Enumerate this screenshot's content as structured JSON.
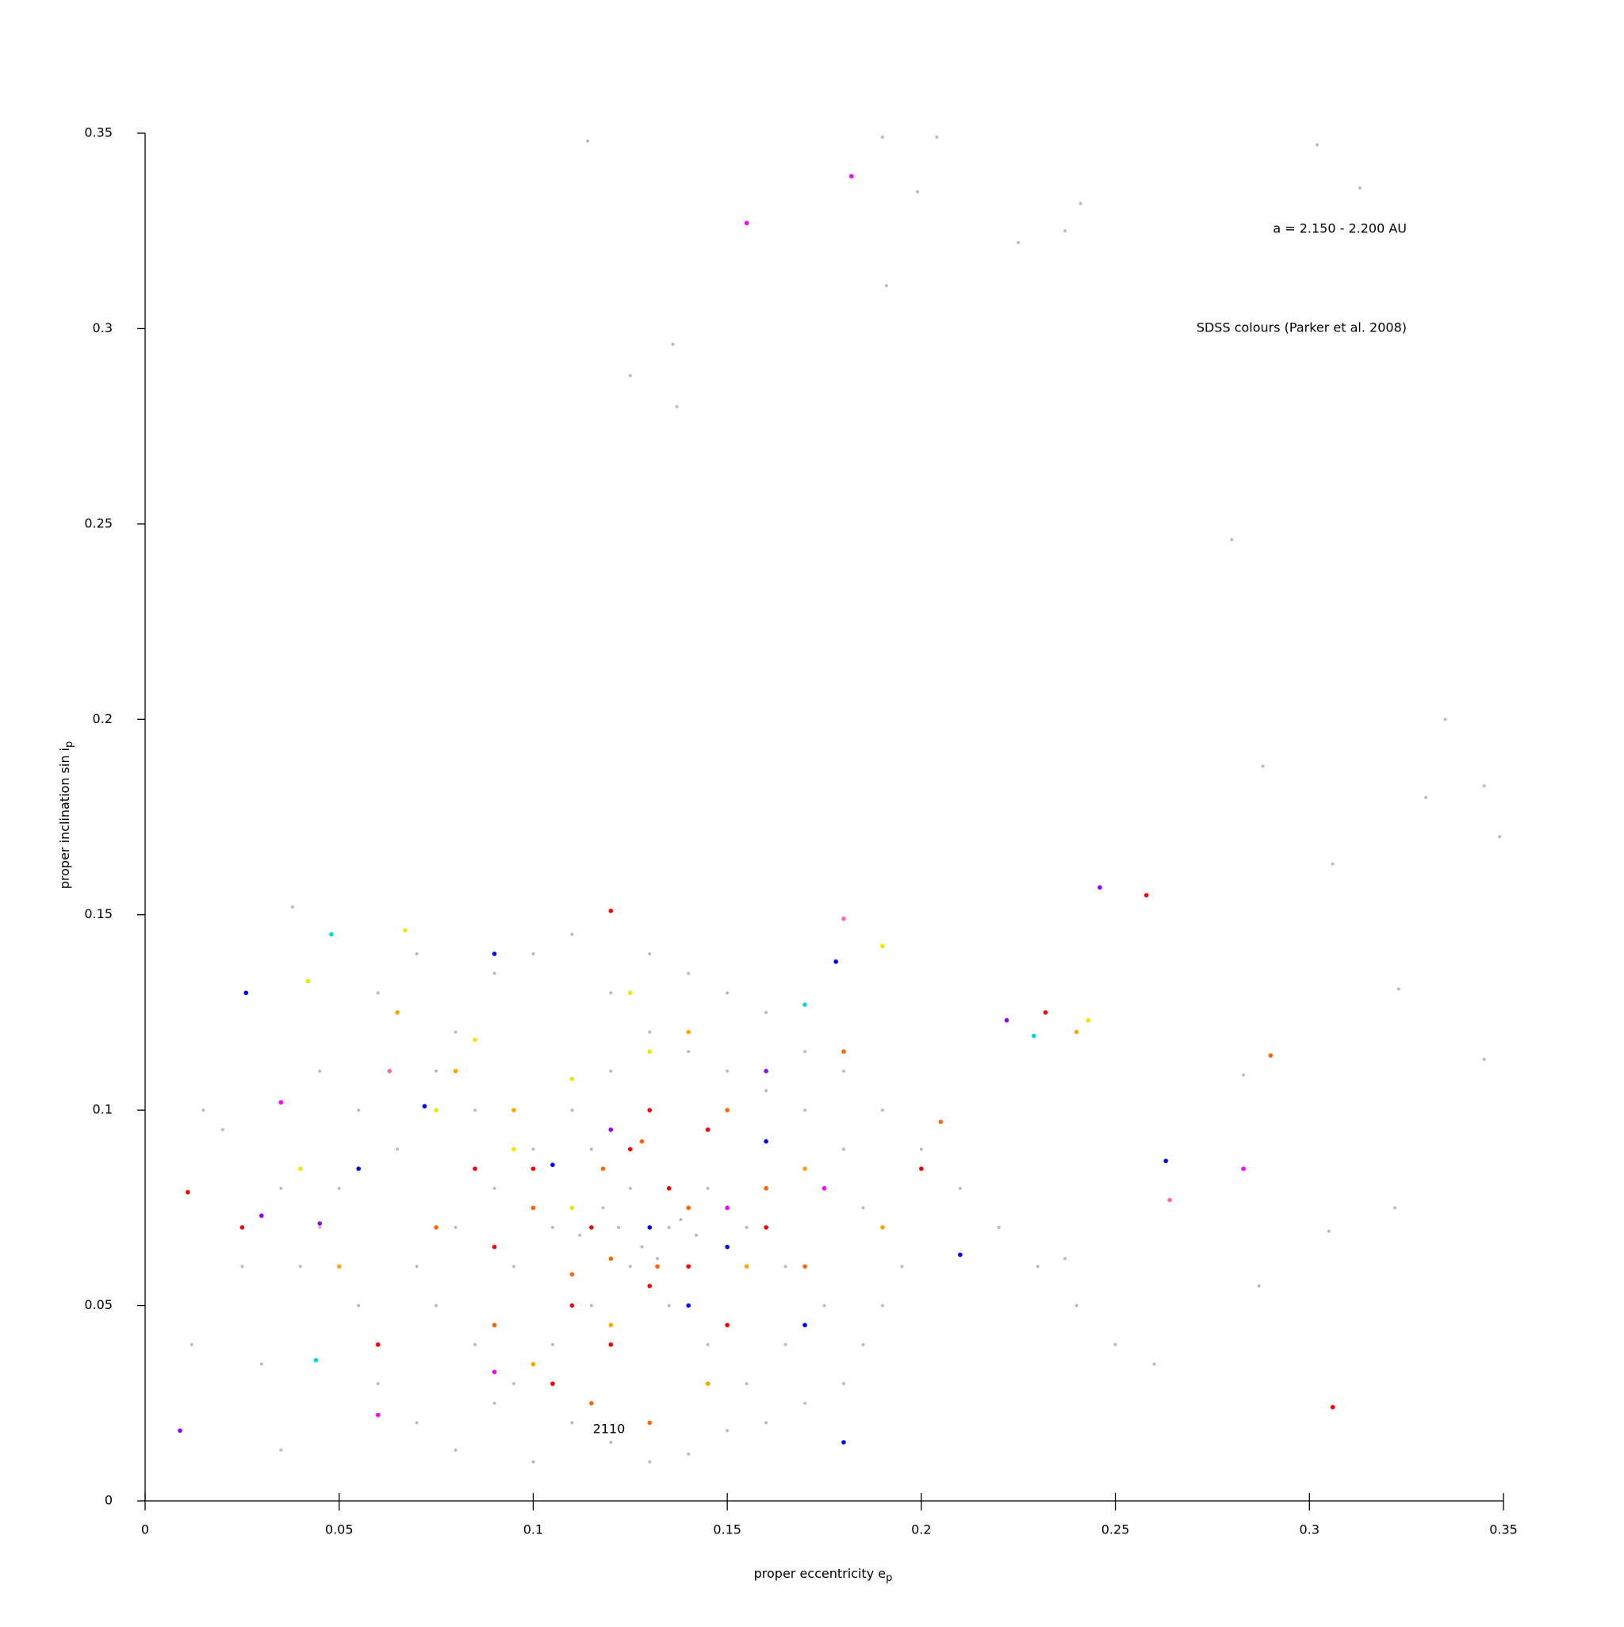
{
  "chart_data": {
    "type": "scatter",
    "xlabel": "proper eccentricity e",
    "xlabel_sub": "p",
    "ylabel": "proper inclination sin i",
    "ylabel_sub": "p",
    "annotations": [
      "a = 2.150 - 2.200 AU",
      "SDSS colours (Parker et al. 2008)",
      "2110"
    ],
    "xlim": [
      0,
      0.35
    ],
    "ylim": [
      0,
      0.35
    ],
    "xticks": [
      0,
      0.05,
      0.1,
      0.15,
      0.2,
      0.25,
      0.3,
      0.35
    ],
    "yticks": [
      0,
      0.05,
      0.1,
      0.15,
      0.2,
      0.25,
      0.3,
      0.35
    ],
    "series": [
      {
        "color": "#bbbbbb",
        "x": [
          0.114,
          0.19,
          0.204,
          0.302,
          0.191,
          0.136,
          0.125,
          0.137,
          0.199,
          0.241,
          0.225,
          0.237,
          0.28,
          0.335,
          0.288,
          0.345,
          0.33,
          0.349,
          0.306,
          0.313,
          0.02,
          0.038,
          0.045,
          0.06,
          0.07,
          0.08,
          0.09,
          0.1,
          0.11,
          0.12,
          0.13,
          0.14,
          0.15,
          0.16,
          0.17,
          0.18,
          0.19,
          0.2,
          0.21,
          0.22,
          0.23,
          0.24,
          0.25,
          0.26,
          0.283,
          0.287,
          0.305,
          0.322,
          0.345,
          0.323,
          0.237,
          0.03,
          0.035,
          0.04,
          0.05,
          0.055,
          0.06,
          0.07,
          0.08,
          0.09,
          0.1,
          0.11,
          0.12,
          0.13,
          0.14,
          0.15,
          0.16,
          0.17,
          0.18,
          0.185,
          0.19,
          0.195,
          0.185,
          0.18,
          0.17,
          0.16,
          0.15,
          0.14,
          0.13,
          0.12,
          0.11,
          0.1,
          0.09,
          0.08,
          0.07,
          0.075,
          0.085,
          0.095,
          0.105,
          0.115,
          0.125,
          0.135,
          0.145,
          0.155,
          0.165,
          0.175,
          0.165,
          0.155,
          0.145,
          0.135,
          0.125,
          0.115,
          0.105,
          0.095,
          0.085,
          0.075,
          0.065,
          0.055,
          0.045,
          0.035,
          0.025,
          0.015,
          0.012,
          0.118,
          0.128,
          0.138,
          0.122,
          0.132,
          0.142,
          0.112
        ],
        "values": [
          0.348,
          0.349,
          0.349,
          0.347,
          0.311,
          0.296,
          0.288,
          0.28,
          0.335,
          0.332,
          0.322,
          0.325,
          0.246,
          0.2,
          0.188,
          0.183,
          0.18,
          0.17,
          0.163,
          0.336,
          0.095,
          0.152,
          0.11,
          0.13,
          0.14,
          0.12,
          0.135,
          0.14,
          0.145,
          0.13,
          0.14,
          0.135,
          0.13,
          0.125,
          0.115,
          0.11,
          0.1,
          0.09,
          0.08,
          0.07,
          0.06,
          0.05,
          0.04,
          0.035,
          0.109,
          0.055,
          0.069,
          0.075,
          0.113,
          0.131,
          0.062,
          0.035,
          0.013,
          0.06,
          0.08,
          0.05,
          0.03,
          0.02,
          0.013,
          0.025,
          0.01,
          0.02,
          0.015,
          0.01,
          0.012,
          0.018,
          0.02,
          0.025,
          0.03,
          0.04,
          0.05,
          0.06,
          0.075,
          0.09,
          0.1,
          0.105,
          0.11,
          0.115,
          0.12,
          0.11,
          0.1,
          0.09,
          0.08,
          0.07,
          0.06,
          0.05,
          0.04,
          0.03,
          0.04,
          0.05,
          0.06,
          0.07,
          0.08,
          0.07,
          0.06,
          0.05,
          0.04,
          0.03,
          0.04,
          0.05,
          0.08,
          0.09,
          0.07,
          0.06,
          0.1,
          0.11,
          0.09,
          0.1,
          0.07,
          0.08,
          0.06,
          0.1,
          0.04,
          0.075,
          0.065,
          0.072,
          0.07,
          0.062,
          0.068,
          0.068
        ]
      },
      {
        "color": "#ff0000",
        "x": [
          0.12,
          0.258,
          0.306,
          0.011,
          0.13,
          0.125,
          0.115,
          0.135,
          0.14,
          0.11,
          0.1,
          0.145,
          0.09,
          0.16,
          0.12,
          0.105,
          0.13,
          0.15,
          0.085,
          0.232,
          0.06,
          0.025,
          0.2
        ],
        "values": [
          0.151,
          0.155,
          0.024,
          0.079,
          0.1,
          0.09,
          0.07,
          0.08,
          0.06,
          0.05,
          0.085,
          0.095,
          0.065,
          0.07,
          0.04,
          0.03,
          0.055,
          0.045,
          0.085,
          0.125,
          0.04,
          0.07,
          0.085
        ]
      },
      {
        "color": "#ff6600",
        "x": [
          0.29,
          0.128,
          0.118,
          0.132,
          0.12,
          0.15,
          0.1,
          0.115,
          0.18,
          0.205,
          0.14,
          0.11,
          0.09,
          0.16,
          0.13,
          0.075,
          0.17
        ],
        "values": [
          0.114,
          0.092,
          0.085,
          0.06,
          0.062,
          0.1,
          0.075,
          0.025,
          0.115,
          0.097,
          0.075,
          0.058,
          0.045,
          0.08,
          0.02,
          0.07,
          0.06
        ]
      },
      {
        "color": "#ffa500",
        "x": [
          0.065,
          0.08,
          0.095,
          0.14,
          0.155,
          0.17,
          0.12,
          0.1,
          0.05,
          0.19,
          0.24,
          0.145
        ],
        "values": [
          0.125,
          0.11,
          0.1,
          0.12,
          0.06,
          0.085,
          0.045,
          0.035,
          0.06,
          0.07,
          0.12,
          0.03
        ]
      },
      {
        "color": "#f2e600",
        "x": [
          0.067,
          0.042,
          0.085,
          0.11,
          0.125,
          0.095,
          0.04,
          0.075,
          0.243,
          0.19,
          0.13,
          0.11
        ],
        "values": [
          0.146,
          0.133,
          0.118,
          0.108,
          0.13,
          0.09,
          0.085,
          0.1,
          0.123,
          0.142,
          0.115,
          0.075
        ]
      },
      {
        "color": "#0000ff",
        "x": [
          0.026,
          0.263,
          0.105,
          0.15,
          0.16,
          0.178,
          0.09,
          0.14,
          0.17,
          0.055,
          0.21,
          0.18,
          0.072,
          0.13
        ],
        "values": [
          0.13,
          0.087,
          0.086,
          0.065,
          0.092,
          0.138,
          0.14,
          0.05,
          0.045,
          0.085,
          0.063,
          0.015,
          0.101,
          0.07
        ]
      },
      {
        "color": "#9900ff",
        "x": [
          0.246,
          0.009,
          0.045,
          0.03,
          0.222,
          0.12,
          0.16
        ],
        "values": [
          0.157,
          0.018,
          0.071,
          0.073,
          0.123,
          0.095,
          0.11
        ]
      },
      {
        "color": "#ff00ff",
        "x": [
          0.155,
          0.182,
          0.175,
          0.035,
          0.09,
          0.06,
          0.283,
          0.15
        ],
        "values": [
          0.327,
          0.339,
          0.08,
          0.102,
          0.033,
          0.022,
          0.085,
          0.075
        ]
      },
      {
        "color": "#00d8d8",
        "x": [
          0.048,
          0.229,
          0.044,
          0.17
        ],
        "values": [
          0.145,
          0.119,
          0.036,
          0.127
        ]
      },
      {
        "color": "#ff69b4",
        "x": [
          0.264,
          0.18,
          0.063
        ],
        "values": [
          0.077,
          0.149,
          0.11
        ]
      }
    ]
  }
}
